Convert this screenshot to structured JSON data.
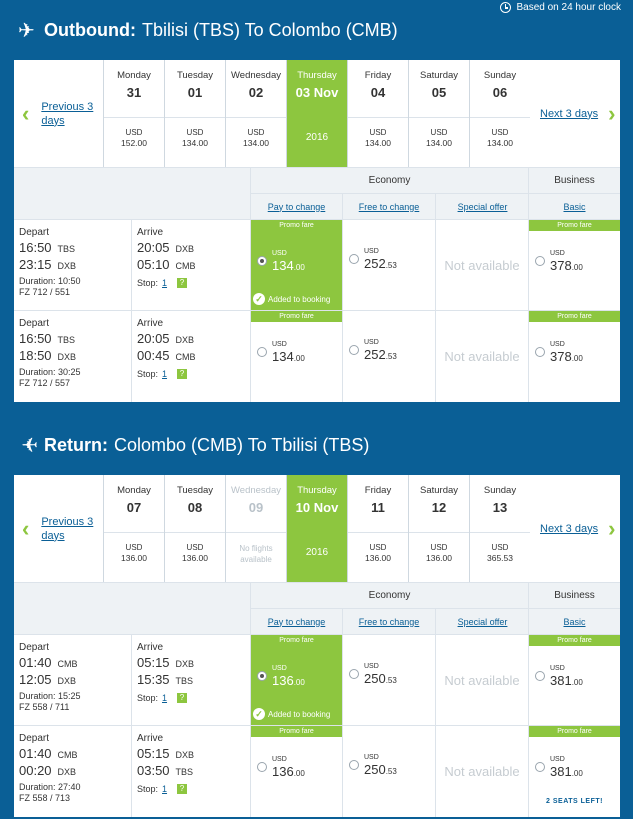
{
  "clock_note": "Based on 24 hour clock",
  "outbound": {
    "prefix": "Outbound:",
    "route": "Tbilisi (TBS) To Colombo (CMB)",
    "prev_label": "Previous 3 days",
    "next_label": "Next 3 days",
    "days": [
      {
        "name": "Monday",
        "num": "31",
        "cur": "USD",
        "price": "152.00"
      },
      {
        "name": "Tuesday",
        "num": "01",
        "cur": "USD",
        "price": "134.00"
      },
      {
        "name": "Wednesday",
        "num": "02",
        "cur": "USD",
        "price": "134.00"
      },
      {
        "name": "Thursday",
        "num": "03 Nov",
        "year": "2016"
      },
      {
        "name": "Friday",
        "num": "04",
        "cur": "USD",
        "price": "134.00"
      },
      {
        "name": "Saturday",
        "num": "05",
        "cur": "USD",
        "price": "134.00"
      },
      {
        "name": "Sunday",
        "num": "06",
        "cur": "USD",
        "price": "134.00"
      }
    ],
    "flights": [
      {
        "depart_label": "Depart",
        "arrive_label": "Arrive",
        "dep1_time": "16:50",
        "dep1_code": "TBS",
        "dep2_time": "23:15",
        "dep2_code": "DXB",
        "arr1_time": "20:05",
        "arr1_code": "DXB",
        "arr2_time": "05:10",
        "arr2_code": "CMB",
        "duration": "Duration: 10:50",
        "flight_no": "FZ 712 / 551",
        "stop_label": "Stop:",
        "stop_count": "1",
        "pay_promo": "Promo fare",
        "pay_cur": "USD",
        "pay_int": "134",
        "pay_dec": ".00",
        "added": "Added to booking",
        "free_cur": "USD",
        "free_int": "252",
        "free_dec": ".53",
        "special": "Not available",
        "bus_promo": "Promo fare",
        "bus_cur": "USD",
        "bus_int": "378",
        "bus_dec": ".00"
      },
      {
        "depart_label": "Depart",
        "arrive_label": "Arrive",
        "dep1_time": "16:50",
        "dep1_code": "TBS",
        "dep2_time": "18:50",
        "dep2_code": "DXB",
        "arr1_time": "20:05",
        "arr1_code": "DXB",
        "arr2_time": "00:45",
        "arr2_code": "CMB",
        "duration": "Duration: 30:25",
        "flight_no": "FZ 712 / 557",
        "stop_label": "Stop:",
        "stop_count": "1",
        "pay_promo": "Promo fare",
        "pay_cur": "USD",
        "pay_int": "134",
        "pay_dec": ".00",
        "free_cur": "USD",
        "free_int": "252",
        "free_dec": ".53",
        "special": "Not available",
        "bus_promo": "Promo fare",
        "bus_cur": "USD",
        "bus_int": "378",
        "bus_dec": ".00"
      }
    ]
  },
  "return": {
    "prefix": "Return:",
    "route": "Colombo (CMB) To Tbilisi (TBS)",
    "prev_label": "Previous 3 days",
    "next_label": "Next 3 days",
    "days": [
      {
        "name": "Monday",
        "num": "07",
        "cur": "USD",
        "price": "136.00"
      },
      {
        "name": "Tuesday",
        "num": "08",
        "cur": "USD",
        "price": "136.00"
      },
      {
        "name": "Wednesday",
        "num": "09",
        "no_flights": "No flights available"
      },
      {
        "name": "Thursday",
        "num": "10 Nov",
        "year": "2016"
      },
      {
        "name": "Friday",
        "num": "11",
        "cur": "USD",
        "price": "136.00"
      },
      {
        "name": "Saturday",
        "num": "12",
        "cur": "USD",
        "price": "136.00"
      },
      {
        "name": "Sunday",
        "num": "13",
        "cur": "USD",
        "price": "365.53"
      }
    ],
    "flights": [
      {
        "depart_label": "Depart",
        "arrive_label": "Arrive",
        "dep1_time": "01:40",
        "dep1_code": "CMB",
        "dep2_time": "12:05",
        "dep2_code": "DXB",
        "arr1_time": "05:15",
        "arr1_code": "DXB",
        "arr2_time": "15:35",
        "arr2_code": "TBS",
        "duration": "Duration: 15:25",
        "flight_no": "FZ 558 / 711",
        "stop_label": "Stop:",
        "stop_count": "1",
        "pay_promo": "Promo fare",
        "pay_cur": "USD",
        "pay_int": "136",
        "pay_dec": ".00",
        "added": "Added to booking",
        "free_cur": "USD",
        "free_int": "250",
        "free_dec": ".53",
        "special": "Not available",
        "bus_promo": "Promo fare",
        "bus_cur": "USD",
        "bus_int": "381",
        "bus_dec": ".00"
      },
      {
        "depart_label": "Depart",
        "arrive_label": "Arrive",
        "dep1_time": "01:40",
        "dep1_code": "CMB",
        "dep2_time": "00:20",
        "dep2_code": "DXB",
        "arr1_time": "05:15",
        "arr1_code": "DXB",
        "arr2_time": "03:50",
        "arr2_code": "TBS",
        "duration": "Duration: 27:40",
        "flight_no": "FZ 558 / 713",
        "stop_label": "Stop:",
        "stop_count": "1",
        "pay_promo": "Promo fare",
        "pay_cur": "USD",
        "pay_int": "136",
        "pay_dec": ".00",
        "free_cur": "USD",
        "free_int": "250",
        "free_dec": ".53",
        "special": "Not available",
        "bus_promo": "Promo fare",
        "bus_cur": "USD",
        "bus_int": "381",
        "bus_dec": ".00",
        "seats_left": "2 SEATS LEFT!"
      }
    ]
  },
  "fare_header": {
    "economy": "Economy",
    "business": "Business",
    "pay_to_change": "Pay to change",
    "free_to_change": "Free to change",
    "special_offer": "Special offer",
    "basic": "Basic"
  },
  "colors": {
    "brand_blue": "#0a5f96",
    "promo_green": "#8dc63f"
  },
  "icons": {
    "plane": "plane-icon",
    "clock": "clock-icon",
    "chevron": "chevron-icon",
    "check": "check-icon",
    "help": "help-icon"
  }
}
